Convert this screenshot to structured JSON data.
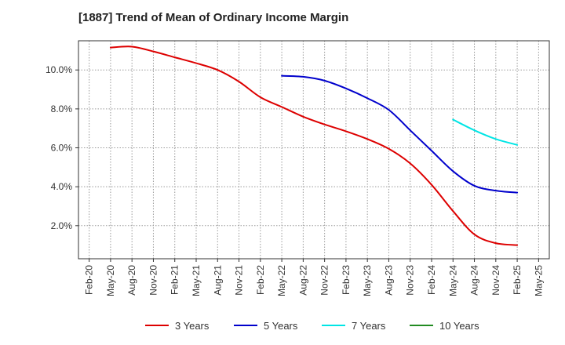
{
  "chart_data": {
    "type": "line",
    "title": "[1887]  Trend of Mean of Ordinary Income Margin",
    "x": [
      "Feb-20",
      "May-20",
      "Aug-20",
      "Nov-20",
      "Feb-21",
      "May-21",
      "Aug-21",
      "Nov-21",
      "Feb-22",
      "May-22",
      "Aug-22",
      "Nov-22",
      "Feb-23",
      "May-23",
      "Aug-23",
      "Nov-23",
      "Feb-24",
      "May-24",
      "Aug-24",
      "Nov-24",
      "Feb-25",
      "May-25"
    ],
    "y_ticks": [
      "2.0%",
      "4.0%",
      "6.0%",
      "8.0%",
      "10.0%"
    ],
    "y_tick_values": [
      2,
      4,
      6,
      8,
      10
    ],
    "ylim": [
      0.3,
      11.5
    ],
    "grid": true,
    "legend_position": "bottom",
    "series": [
      {
        "name": "3 Years",
        "color": "#dd0000",
        "values": [
          null,
          11.15,
          11.2,
          10.95,
          10.65,
          10.35,
          10.0,
          9.4,
          8.6,
          8.1,
          7.6,
          7.2,
          6.85,
          6.45,
          5.95,
          5.2,
          4.1,
          2.75,
          1.55,
          1.1,
          1.0,
          null
        ]
      },
      {
        "name": "5 Years",
        "color": "#0000cc",
        "values": [
          null,
          null,
          null,
          null,
          null,
          null,
          null,
          null,
          null,
          9.7,
          9.65,
          9.45,
          9.05,
          8.55,
          7.95,
          6.9,
          5.85,
          4.8,
          4.05,
          3.8,
          3.7,
          null
        ]
      },
      {
        "name": "7 Years",
        "color": "#00e5e5",
        "values": [
          null,
          null,
          null,
          null,
          null,
          null,
          null,
          null,
          null,
          null,
          null,
          null,
          null,
          null,
          null,
          null,
          null,
          7.45,
          6.9,
          6.45,
          6.15,
          null
        ]
      },
      {
        "name": "10 Years",
        "color": "#228b22",
        "values": [
          null,
          null,
          null,
          null,
          null,
          null,
          null,
          null,
          null,
          null,
          null,
          null,
          null,
          null,
          null,
          null,
          null,
          null,
          null,
          null,
          null,
          null
        ]
      }
    ]
  }
}
